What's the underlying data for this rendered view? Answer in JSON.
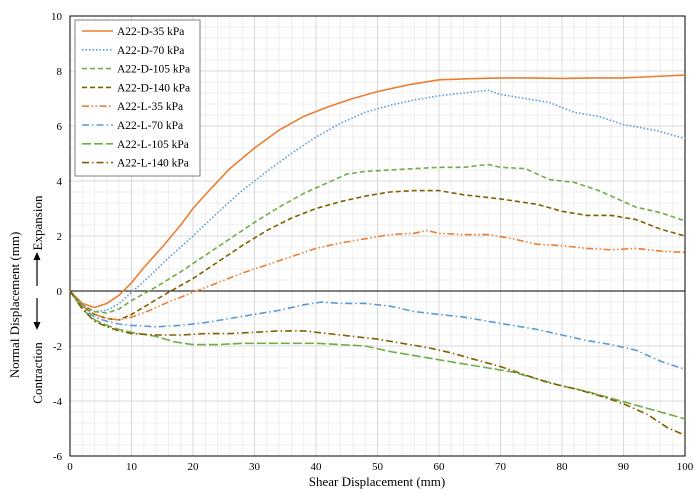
{
  "chart_data": {
    "type": "line",
    "xlabel": "Shear Displacement (mm)",
    "ylabel": {
      "main": "Normal  Displacement (mm)",
      "expansion": "Expansion",
      "contraction": "Contraction"
    },
    "xlim": [
      0,
      100
    ],
    "ylim": [
      -6,
      10
    ],
    "xticks": [
      "0",
      "10",
      "20",
      "30",
      "40",
      "50",
      "60",
      "70",
      "80",
      "90",
      "100"
    ],
    "yticks": [
      "-6",
      "-4",
      "-2",
      "0",
      "2",
      "4",
      "6",
      "8",
      "10"
    ],
    "grid": true,
    "legend_position": "top-left",
    "series": [
      {
        "name": "A22-D-35 kPa",
        "color": "#ED7D31",
        "dash": "solid",
        "points": [
          [
            0,
            0
          ],
          [
            2,
            -0.45
          ],
          [
            4,
            -0.6
          ],
          [
            6,
            -0.45
          ],
          [
            8,
            -0.15
          ],
          [
            10,
            0.3
          ],
          [
            12,
            0.85
          ],
          [
            15,
            1.6
          ],
          [
            18,
            2.4
          ],
          [
            20,
            3.0
          ],
          [
            23,
            3.75
          ],
          [
            26,
            4.45
          ],
          [
            30,
            5.2
          ],
          [
            34,
            5.85
          ],
          [
            38,
            6.35
          ],
          [
            42,
            6.7
          ],
          [
            46,
            7.0
          ],
          [
            50,
            7.25
          ],
          [
            55,
            7.5
          ],
          [
            60,
            7.68
          ],
          [
            65,
            7.72
          ],
          [
            70,
            7.75
          ],
          [
            75,
            7.75
          ],
          [
            80,
            7.73
          ],
          [
            85,
            7.75
          ],
          [
            90,
            7.75
          ],
          [
            95,
            7.8
          ],
          [
            100,
            7.85
          ]
        ]
      },
      {
        "name": "A22-D-70 kPa",
        "color": "#5B9BD5",
        "dash": "dot",
        "points": [
          [
            0,
            0
          ],
          [
            2,
            -0.5
          ],
          [
            4,
            -0.75
          ],
          [
            6,
            -0.7
          ],
          [
            8,
            -0.45
          ],
          [
            10,
            -0.05
          ],
          [
            13,
            0.55
          ],
          [
            16,
            1.2
          ],
          [
            20,
            2.0
          ],
          [
            24,
            2.85
          ],
          [
            28,
            3.65
          ],
          [
            32,
            4.35
          ],
          [
            36,
            5.0
          ],
          [
            40,
            5.6
          ],
          [
            44,
            6.1
          ],
          [
            48,
            6.5
          ],
          [
            52,
            6.75
          ],
          [
            56,
            6.95
          ],
          [
            60,
            7.1
          ],
          [
            64,
            7.2
          ],
          [
            68,
            7.3
          ],
          [
            70,
            7.15
          ],
          [
            74,
            7.0
          ],
          [
            78,
            6.85
          ],
          [
            82,
            6.5
          ],
          [
            86,
            6.35
          ],
          [
            90,
            6.05
          ],
          [
            95,
            5.85
          ],
          [
            100,
            5.55
          ]
        ]
      },
      {
        "name": "A22-D-105 kPa",
        "color": "#70AD47",
        "dash": "dash",
        "points": [
          [
            0,
            0
          ],
          [
            2,
            -0.5
          ],
          [
            4,
            -0.75
          ],
          [
            6,
            -0.8
          ],
          [
            8,
            -0.65
          ],
          [
            10,
            -0.35
          ],
          [
            14,
            0.15
          ],
          [
            18,
            0.7
          ],
          [
            22,
            1.3
          ],
          [
            26,
            1.9
          ],
          [
            30,
            2.5
          ],
          [
            34,
            3.05
          ],
          [
            38,
            3.55
          ],
          [
            42,
            3.95
          ],
          [
            45,
            4.25
          ],
          [
            48,
            4.35
          ],
          [
            52,
            4.4
          ],
          [
            56,
            4.45
          ],
          [
            60,
            4.5
          ],
          [
            64,
            4.5
          ],
          [
            68,
            4.6
          ],
          [
            70,
            4.5
          ],
          [
            74,
            4.45
          ],
          [
            78,
            4.05
          ],
          [
            82,
            3.95
          ],
          [
            86,
            3.65
          ],
          [
            88,
            3.45
          ],
          [
            92,
            3.05
          ],
          [
            96,
            2.85
          ],
          [
            100,
            2.55
          ]
        ]
      },
      {
        "name": "A22-D-140 kPa",
        "color": "#806000",
        "dash": "dash",
        "points": [
          [
            0,
            0
          ],
          [
            2,
            -0.55
          ],
          [
            4,
            -0.85
          ],
          [
            6,
            -1.0
          ],
          [
            8,
            -1.05
          ],
          [
            10,
            -0.85
          ],
          [
            13,
            -0.45
          ],
          [
            16,
            -0.05
          ],
          [
            20,
            0.45
          ],
          [
            24,
            1.05
          ],
          [
            28,
            1.65
          ],
          [
            32,
            2.2
          ],
          [
            36,
            2.65
          ],
          [
            40,
            3.0
          ],
          [
            44,
            3.25
          ],
          [
            48,
            3.45
          ],
          [
            52,
            3.6
          ],
          [
            56,
            3.65
          ],
          [
            60,
            3.65
          ],
          [
            64,
            3.5
          ],
          [
            70,
            3.35
          ],
          [
            76,
            3.15
          ],
          [
            80,
            2.9
          ],
          [
            84,
            2.75
          ],
          [
            88,
            2.75
          ],
          [
            92,
            2.6
          ],
          [
            96,
            2.25
          ],
          [
            100,
            2.0
          ]
        ]
      },
      {
        "name": "A22-L-35 kPa",
        "color": "#ED7D31",
        "dash": "dashdotdot",
        "points": [
          [
            0,
            0
          ],
          [
            2,
            -0.55
          ],
          [
            4,
            -0.85
          ],
          [
            6,
            -1.0
          ],
          [
            8,
            -1.05
          ],
          [
            10,
            -0.95
          ],
          [
            13,
            -0.7
          ],
          [
            16,
            -0.4
          ],
          [
            20,
            -0.05
          ],
          [
            24,
            0.3
          ],
          [
            28,
            0.65
          ],
          [
            32,
            0.95
          ],
          [
            36,
            1.25
          ],
          [
            40,
            1.55
          ],
          [
            44,
            1.75
          ],
          [
            48,
            1.9
          ],
          [
            52,
            2.05
          ],
          [
            56,
            2.1
          ],
          [
            58,
            2.2
          ],
          [
            60,
            2.1
          ],
          [
            64,
            2.05
          ],
          [
            68,
            2.05
          ],
          [
            72,
            1.9
          ],
          [
            76,
            1.7
          ],
          [
            80,
            1.65
          ],
          [
            84,
            1.55
          ],
          [
            88,
            1.5
          ],
          [
            92,
            1.55
          ],
          [
            96,
            1.45
          ],
          [
            100,
            1.4
          ]
        ]
      },
      {
        "name": "A22-L-70 kPa",
        "color": "#5B9BD5",
        "dash": "dashdot",
        "points": [
          [
            0,
            0
          ],
          [
            2,
            -0.6
          ],
          [
            4,
            -0.95
          ],
          [
            6,
            -1.1
          ],
          [
            8,
            -1.2
          ],
          [
            10,
            -1.25
          ],
          [
            14,
            -1.3
          ],
          [
            18,
            -1.25
          ],
          [
            22,
            -1.15
          ],
          [
            26,
            -1.0
          ],
          [
            30,
            -0.85
          ],
          [
            34,
            -0.7
          ],
          [
            38,
            -0.5
          ],
          [
            41,
            -0.4
          ],
          [
            44,
            -0.45
          ],
          [
            48,
            -0.45
          ],
          [
            52,
            -0.55
          ],
          [
            56,
            -0.75
          ],
          [
            60,
            -0.85
          ],
          [
            64,
            -0.95
          ],
          [
            68,
            -1.1
          ],
          [
            72,
            -1.25
          ],
          [
            76,
            -1.4
          ],
          [
            80,
            -1.6
          ],
          [
            84,
            -1.8
          ],
          [
            88,
            -1.95
          ],
          [
            92,
            -2.15
          ],
          [
            96,
            -2.55
          ],
          [
            100,
            -2.85
          ]
        ]
      },
      {
        "name": "A22-L-105 kPa",
        "color": "#70AD47",
        "dash": "longdash",
        "points": [
          [
            0,
            0
          ],
          [
            2,
            -0.65
          ],
          [
            4,
            -1.05
          ],
          [
            6,
            -1.25
          ],
          [
            8,
            -1.4
          ],
          [
            10,
            -1.5
          ],
          [
            14,
            -1.65
          ],
          [
            17,
            -1.85
          ],
          [
            20,
            -1.95
          ],
          [
            24,
            -1.95
          ],
          [
            28,
            -1.9
          ],
          [
            32,
            -1.9
          ],
          [
            36,
            -1.9
          ],
          [
            40,
            -1.9
          ],
          [
            44,
            -1.95
          ],
          [
            48,
            -2.0
          ],
          [
            52,
            -2.2
          ],
          [
            56,
            -2.35
          ],
          [
            60,
            -2.5
          ],
          [
            64,
            -2.65
          ],
          [
            68,
            -2.8
          ],
          [
            72,
            -2.95
          ],
          [
            76,
            -3.2
          ],
          [
            80,
            -3.45
          ],
          [
            84,
            -3.65
          ],
          [
            88,
            -3.9
          ],
          [
            92,
            -4.15
          ],
          [
            96,
            -4.4
          ],
          [
            100,
            -4.65
          ]
        ]
      },
      {
        "name": "A22-L-140 kPa",
        "color": "#806000",
        "dash": "dashdot",
        "points": [
          [
            0,
            0
          ],
          [
            2,
            -0.65
          ],
          [
            4,
            -1.1
          ],
          [
            6,
            -1.3
          ],
          [
            8,
            -1.45
          ],
          [
            10,
            -1.55
          ],
          [
            14,
            -1.6
          ],
          [
            18,
            -1.6
          ],
          [
            22,
            -1.55
          ],
          [
            26,
            -1.55
          ],
          [
            30,
            -1.5
          ],
          [
            34,
            -1.45
          ],
          [
            38,
            -1.45
          ],
          [
            42,
            -1.55
          ],
          [
            46,
            -1.65
          ],
          [
            50,
            -1.75
          ],
          [
            54,
            -1.9
          ],
          [
            58,
            -2.05
          ],
          [
            62,
            -2.25
          ],
          [
            66,
            -2.5
          ],
          [
            70,
            -2.75
          ],
          [
            74,
            -3.05
          ],
          [
            78,
            -3.35
          ],
          [
            82,
            -3.55
          ],
          [
            86,
            -3.8
          ],
          [
            90,
            -4.1
          ],
          [
            94,
            -4.5
          ],
          [
            97,
            -4.95
          ],
          [
            100,
            -5.25
          ]
        ]
      }
    ]
  }
}
